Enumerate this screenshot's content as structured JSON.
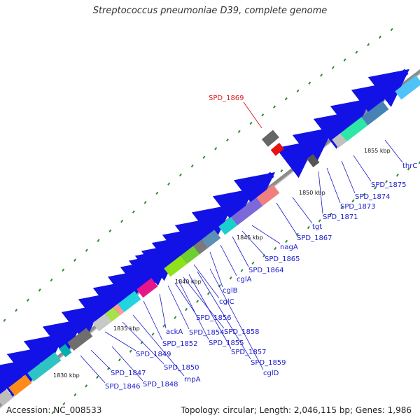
{
  "title": "Streptococcus pneumoniae D39, complete genome",
  "footer": {
    "accession": "Accession: NC_008533",
    "summary": "Topology: circular; Length: 2,046,115 bp; Genes: 1,986"
  },
  "colors": {
    "gene": "#1212e6",
    "backbone": "#8c8c8c",
    "label": "#1a1acc",
    "highlight": "#e02020",
    "dots": "#2e8b2e"
  },
  "highlight": {
    "label": "SPD_1869"
  },
  "ticks": [
    "1830 kbp",
    "1835 kbp",
    "1840 kbp",
    "1845 kbp",
    "1850 kbp",
    "1855 kbp"
  ],
  "gene_labels": [
    "SPD_1846",
    "SPD_1847",
    "SPD_1848",
    "SPD_1849",
    "SPD_1850",
    "rnpA",
    "SPD_1852",
    "ackA",
    "SPD_1854",
    "SPD_1855",
    "SPD_1856",
    "SPD_1857",
    "SPD_1858",
    "SPD_1859",
    "cglD",
    "cglC",
    "cglB",
    "cglA",
    "SPD_1864",
    "SPD_1865",
    "nagA",
    "SPD_1867",
    "tgt",
    "SPD_1871",
    "SPD_1873",
    "SPD_1874",
    "SPD_1875",
    "thrC"
  ]
}
